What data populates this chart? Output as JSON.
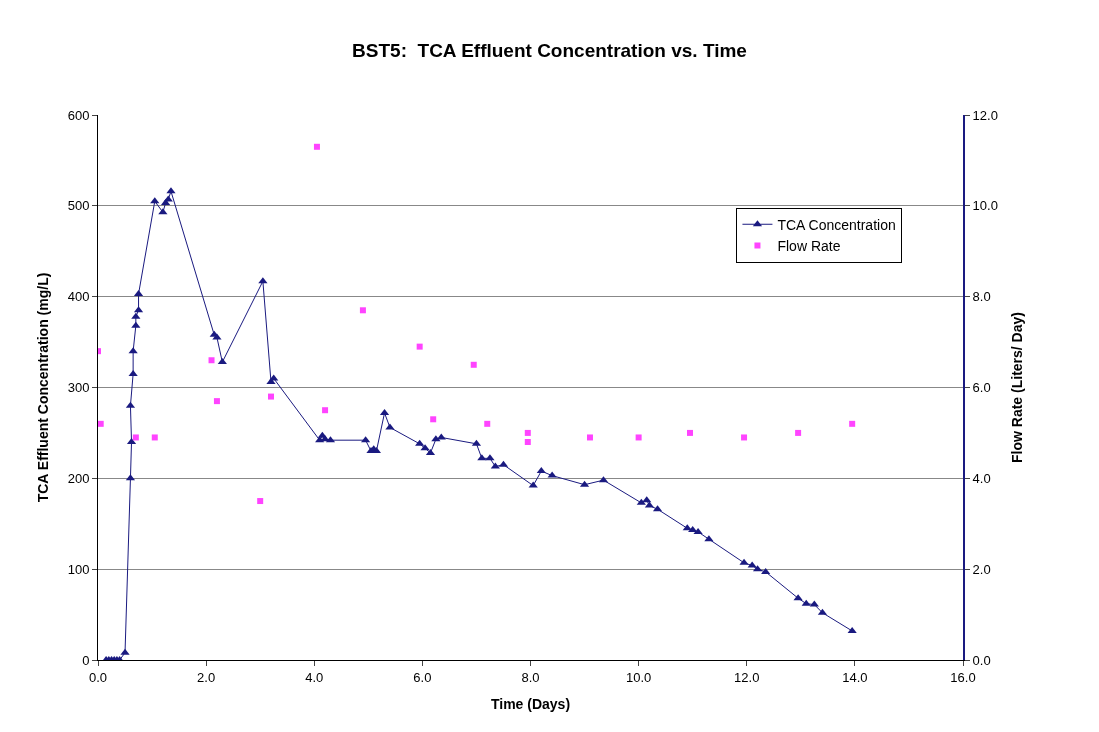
{
  "chart_data": {
    "type": "line",
    "title": "BST5:  TCA Effluent Concentration vs. Time",
    "xlabel": "Time (Days)",
    "ylabel": "TCA Effluent Concentration (mg/L)",
    "y2label": "Flow Rate (Liters/ Day)",
    "xlim": [
      0,
      16
    ],
    "xticks": [
      {
        "value": 0,
        "label": "0.0"
      },
      {
        "value": 2,
        "label": "2.0"
      },
      {
        "value": 4,
        "label": "4.0"
      },
      {
        "value": 6,
        "label": "6.0"
      },
      {
        "value": 8,
        "label": "8.0"
      },
      {
        "value": 10,
        "label": "10.0"
      },
      {
        "value": 12,
        "label": "12.0"
      },
      {
        "value": 14,
        "label": "14.0"
      },
      {
        "value": 16,
        "label": "16.0"
      }
    ],
    "ylim": [
      0,
      600
    ],
    "yticks": [
      0,
      100,
      200,
      300,
      400,
      500,
      600
    ],
    "y2lim": [
      0,
      12
    ],
    "y2ticks": [
      {
        "value": 0,
        "label": "0.0"
      },
      {
        "value": 2,
        "label": "2.0"
      },
      {
        "value": 4,
        "label": "4.0"
      },
      {
        "value": 6,
        "label": "6.0"
      },
      {
        "value": 8,
        "label": "8.0"
      },
      {
        "value": 10,
        "label": "10.0"
      },
      {
        "value": 12,
        "label": "12.0"
      }
    ],
    "grid": "y",
    "legend": "top right",
    "series": [
      {
        "name": "TCA Concentration",
        "marker": "triangle",
        "color": "#1a1a80",
        "x": [
          0.15,
          0.2,
          0.25,
          0.3,
          0.35,
          0.4,
          0.5,
          0.6,
          0.62,
          0.6,
          0.65,
          0.65,
          0.7,
          0.7,
          0.75,
          0.75,
          1.05,
          1.2,
          1.25,
          1.3,
          1.35,
          2.15,
          2.2,
          2.3,
          3.05,
          3.2,
          3.25,
          4.1,
          4.15,
          4.2,
          4.3,
          4.95,
          5.05,
          5.1,
          5.15,
          5.3,
          5.4,
          5.95,
          6.05,
          6.15,
          6.25,
          6.35,
          7.0,
          7.1,
          7.25,
          7.35,
          7.5,
          8.05,
          8.2,
          8.4,
          9.0,
          9.35,
          10.05,
          10.15,
          10.2,
          10.35,
          10.9,
          11.0,
          11.1,
          11.3,
          11.95,
          12.1,
          12.2,
          12.35,
          12.95,
          13.1,
          13.25,
          13.4,
          13.95
        ],
        "values": [
          0,
          0,
          0,
          0,
          0,
          0,
          8,
          200,
          240,
          280,
          315,
          340,
          368,
          378,
          385,
          403,
          505,
          493,
          503,
          507,
          516,
          358,
          355,
          328,
          417,
          306,
          310,
          242,
          247,
          243,
          242,
          242,
          230,
          232,
          230,
          272,
          256,
          238,
          233,
          228,
          243,
          245,
          238,
          222,
          222,
          213,
          215,
          192,
          208,
          203,
          193,
          198,
          173,
          176,
          170,
          166,
          145,
          143,
          141,
          133,
          107,
          104,
          100,
          97,
          68,
          62,
          61,
          52,
          32
        ]
      },
      {
        "name": "Flow Rate",
        "type": "scatter",
        "marker": "square",
        "color": "#ff44ff",
        "axis": "y2",
        "x": [
          0.0,
          0.05,
          0.7,
          1.05,
          2.1,
          2.2,
          3.0,
          3.2,
          4.05,
          4.2,
          4.9,
          5.95,
          6.2,
          6.95,
          7.2,
          7.95,
          7.95,
          9.1,
          10.0,
          10.95,
          11.95,
          12.95,
          13.95
        ],
        "values": [
          6.8,
          5.2,
          4.9,
          4.9,
          6.6,
          5.7,
          3.5,
          5.8,
          11.3,
          5.5,
          7.7,
          6.9,
          5.3,
          6.5,
          5.2,
          5.0,
          4.8,
          4.9,
          4.9,
          5.0,
          4.9,
          5.0,
          5.2
        ]
      }
    ]
  }
}
